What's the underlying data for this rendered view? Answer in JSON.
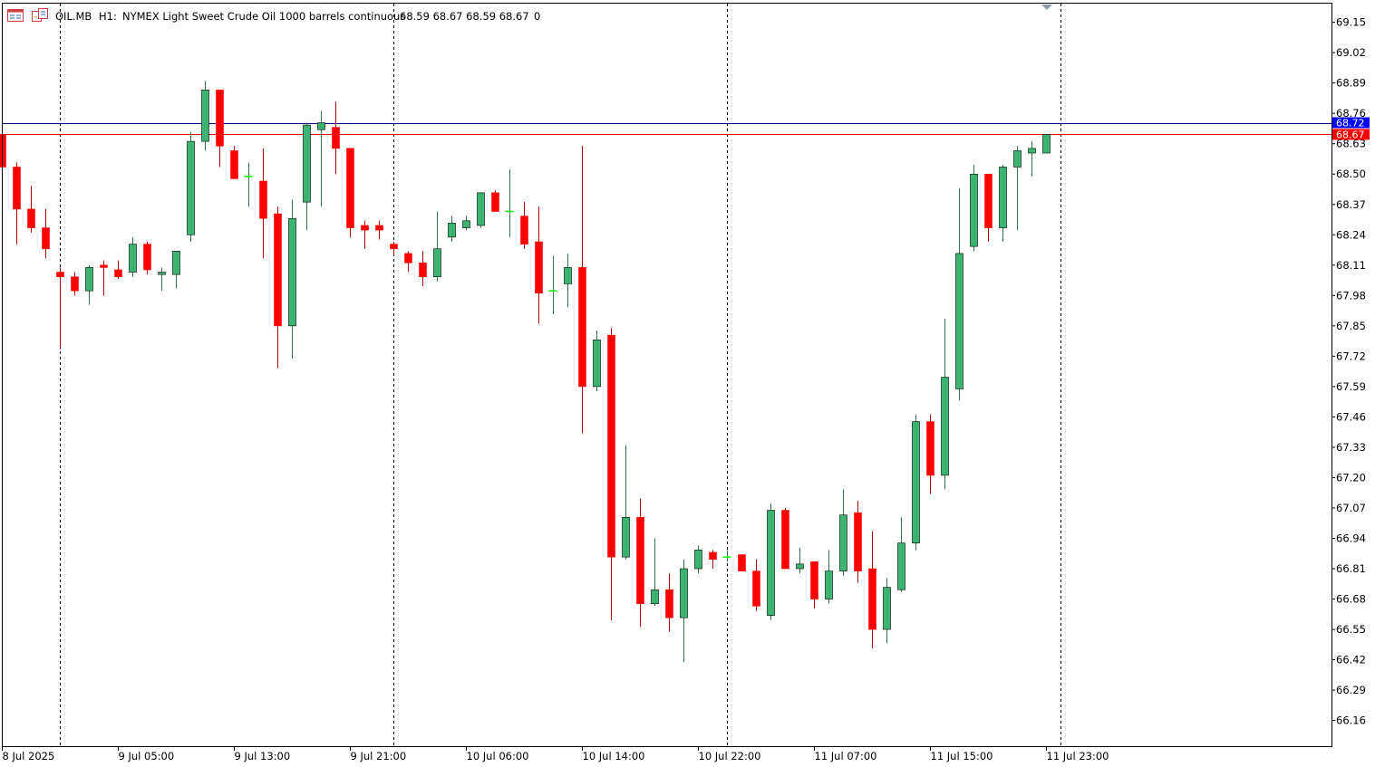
{
  "header": {
    "symbol": "OIL.MB",
    "timeframe": "H1:",
    "description": "NYMEX Light Sweet Crude Oil 1000 barrels continuous",
    "ohlc": "68.59 68.67 68.59 68.67",
    "volume": "0",
    "icons": [
      "chart-window-icon",
      "chart-template-icon"
    ]
  },
  "colors": {
    "bull": "#3cb371",
    "bear": "#ff0000",
    "doji": "#00ff00",
    "grid": "#000000",
    "bid_line": "#ff0000",
    "ask_line": "#000080",
    "ask_badge": "#0000ff",
    "bid_badge": "#ff0000",
    "frame": "#000000"
  },
  "chart_data": {
    "type": "candlestick",
    "ylim": [
      66.05,
      69.23
    ],
    "y_ticks": [
      "69.15",
      "69.02",
      "68.89",
      "68.76",
      "68.63",
      "68.50",
      "68.37",
      "68.24",
      "68.11",
      "67.98",
      "67.85",
      "67.72",
      "67.59",
      "67.46",
      "67.33",
      "67.20",
      "67.07",
      "66.94",
      "66.81",
      "66.68",
      "66.55",
      "66.42",
      "66.29",
      "66.16"
    ],
    "x_labels": [
      {
        "index": 0,
        "text": "8 Jul 2025"
      },
      {
        "index": 8,
        "text": "9 Jul 05:00"
      },
      {
        "index": 16,
        "text": "9 Jul 13:00"
      },
      {
        "index": 24,
        "text": "9 Jul 21:00"
      },
      {
        "index": 32,
        "text": "10 Jul 06:00"
      },
      {
        "index": 40,
        "text": "10 Jul 14:00"
      },
      {
        "index": 48,
        "text": "10 Jul 22:00"
      },
      {
        "index": 56,
        "text": "11 Jul 07:00"
      },
      {
        "index": 64,
        "text": "11 Jul 15:00"
      },
      {
        "index": 72,
        "text": "11 Jul 23:00"
      }
    ],
    "separators": [
      4,
      27,
      50,
      73
    ],
    "bid_price": "68.67",
    "ask_price": "68.72",
    "bid": 68.67,
    "ask": 68.72,
    "candles": [
      [
        68.67,
        68.67,
        68.53,
        68.53
      ],
      [
        68.53,
        68.55,
        68.2,
        68.35
      ],
      [
        68.35,
        68.45,
        68.25,
        68.27
      ],
      [
        68.27,
        68.35,
        68.14,
        68.18
      ],
      [
        68.08,
        68.1,
        67.75,
        68.06
      ],
      [
        68.06,
        68.08,
        67.98,
        68.0
      ],
      [
        68.0,
        68.11,
        67.94,
        68.1
      ],
      [
        68.11,
        68.13,
        67.98,
        68.1
      ],
      [
        68.09,
        68.13,
        68.05,
        68.06
      ],
      [
        68.08,
        68.23,
        68.06,
        68.2
      ],
      [
        68.2,
        68.21,
        68.07,
        68.09
      ],
      [
        68.07,
        68.1,
        68.0,
        68.08
      ],
      [
        68.07,
        68.17,
        68.01,
        68.17
      ],
      [
        68.24,
        68.68,
        68.21,
        68.64
      ],
      [
        68.64,
        68.9,
        68.6,
        68.86
      ],
      [
        68.86,
        68.86,
        68.53,
        68.62
      ],
      [
        68.6,
        68.62,
        68.48,
        68.48
      ],
      [
        68.49,
        68.55,
        68.36,
        68.49
      ],
      [
        68.47,
        68.61,
        68.14,
        68.31
      ],
      [
        68.33,
        68.36,
        67.67,
        67.85
      ],
      [
        67.85,
        68.39,
        67.71,
        68.31
      ],
      [
        68.38,
        68.72,
        68.26,
        68.71
      ],
      [
        68.69,
        68.77,
        68.36,
        68.72
      ],
      [
        68.7,
        68.81,
        68.5,
        68.61
      ],
      [
        68.61,
        68.61,
        68.23,
        68.27
      ],
      [
        68.28,
        68.3,
        68.18,
        68.26
      ],
      [
        68.28,
        68.3,
        68.22,
        68.26
      ],
      [
        68.2,
        68.21,
        68.15,
        68.18
      ],
      [
        68.16,
        68.17,
        68.08,
        68.12
      ],
      [
        68.12,
        68.17,
        68.02,
        68.06
      ],
      [
        68.06,
        68.34,
        68.04,
        68.18
      ],
      [
        68.23,
        68.32,
        68.21,
        68.29
      ],
      [
        68.27,
        68.32,
        68.26,
        68.3
      ],
      [
        68.28,
        68.42,
        68.27,
        68.42
      ],
      [
        68.42,
        68.43,
        68.34,
        68.34
      ],
      [
        68.34,
        68.52,
        68.23,
        68.34
      ],
      [
        68.32,
        68.38,
        68.18,
        68.2
      ],
      [
        68.21,
        68.36,
        67.86,
        67.99
      ],
      [
        68.0,
        68.15,
        67.9,
        68.0
      ],
      [
        68.03,
        68.16,
        67.93,
        68.1
      ],
      [
        68.1,
        68.62,
        67.39,
        67.59
      ],
      [
        67.59,
        67.83,
        67.57,
        67.79
      ],
      [
        67.81,
        67.84,
        66.59,
        66.86
      ],
      [
        66.86,
        67.34,
        66.85,
        67.03
      ],
      [
        67.03,
        67.11,
        66.56,
        66.66
      ],
      [
        66.66,
        66.94,
        66.65,
        66.72
      ],
      [
        66.72,
        66.79,
        66.54,
        66.6
      ],
      [
        66.6,
        66.85,
        66.41,
        66.81
      ],
      [
        66.81,
        66.91,
        66.79,
        66.89
      ],
      [
        66.88,
        66.89,
        66.81,
        66.85
      ],
      [
        66.86,
        66.89,
        66.84,
        66.86
      ],
      [
        66.87,
        66.87,
        66.8,
        66.8
      ],
      [
        66.8,
        66.85,
        66.63,
        66.65
      ],
      [
        66.61,
        67.09,
        66.59,
        67.06
      ],
      [
        67.06,
        67.07,
        66.81,
        66.81
      ],
      [
        66.81,
        66.9,
        66.79,
        66.83
      ],
      [
        66.84,
        66.84,
        66.64,
        66.68
      ],
      [
        66.68,
        66.89,
        66.66,
        66.8
      ],
      [
        66.8,
        67.15,
        66.78,
        67.04
      ],
      [
        67.05,
        67.1,
        66.75,
        66.8
      ],
      [
        66.81,
        66.97,
        66.47,
        66.55
      ],
      [
        66.55,
        66.77,
        66.49,
        66.73
      ],
      [
        66.72,
        67.03,
        66.71,
        66.92
      ],
      [
        66.92,
        67.47,
        66.89,
        67.44
      ],
      [
        67.44,
        67.47,
        67.13,
        67.21
      ],
      [
        67.21,
        67.88,
        67.15,
        67.63
      ],
      [
        67.58,
        68.44,
        67.53,
        68.16
      ],
      [
        68.19,
        68.54,
        68.17,
        68.5
      ],
      [
        68.5,
        68.5,
        68.21,
        68.27
      ],
      [
        68.27,
        68.54,
        68.21,
        68.53
      ],
      [
        68.53,
        68.62,
        68.26,
        68.6
      ],
      [
        68.59,
        68.64,
        68.49,
        68.61
      ],
      [
        68.59,
        68.67,
        68.59,
        68.67
      ]
    ]
  }
}
